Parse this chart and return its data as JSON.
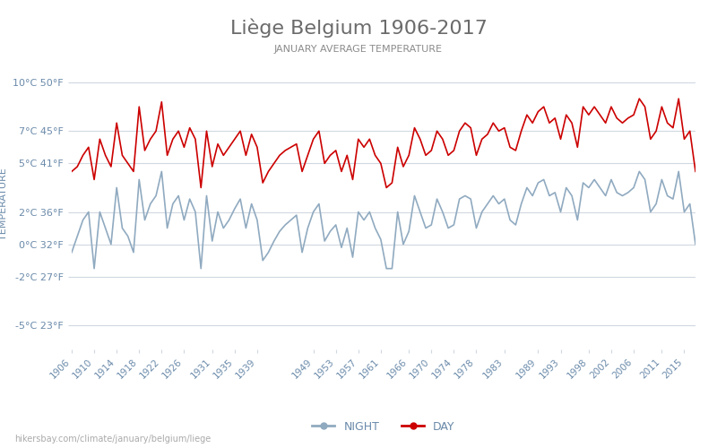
{
  "title": "Liège Belgium 1906-2017",
  "subtitle": "JANUARY AVERAGE TEMPERATURE",
  "ylabel": "TEMPERATURE",
  "xlabel": "",
  "bg_color": "#ffffff",
  "grid_color": "#d0d8e0",
  "title_color": "#6b6b6b",
  "subtitle_color": "#8b8b8b",
  "ylabel_color": "#6a8aaa",
  "tick_color": "#6a8aaa",
  "day_color": "#cc0000",
  "night_color": "#90aac0",
  "yticks_c": [
    10,
    7,
    5,
    2,
    0,
    -2,
    -5
  ],
  "ytick_labels": [
    "10°C 50°F",
    "7°C 45°F",
    "5°C 41°F",
    "2°C 36°F",
    "0°C 32°F",
    "-2°C 27°F",
    "-5°C 23°F"
  ],
  "xtick_labels": [
    "1906",
    "1910",
    "1914",
    "1918",
    "1922",
    "1926",
    "1931",
    "1935",
    "1939",
    "1949",
    "1953",
    "1957",
    "1961",
    "1966",
    "1970",
    "1974",
    "1978",
    "1983",
    "1989",
    "1993",
    "1998",
    "2002",
    "2006",
    "2011",
    "2015"
  ],
  "years": [
    1906,
    1907,
    1908,
    1909,
    1910,
    1911,
    1912,
    1913,
    1914,
    1915,
    1916,
    1917,
    1918,
    1919,
    1920,
    1921,
    1922,
    1923,
    1924,
    1925,
    1926,
    1927,
    1928,
    1929,
    1930,
    1931,
    1932,
    1933,
    1934,
    1935,
    1936,
    1937,
    1938,
    1939,
    1940,
    1941,
    1942,
    1943,
    1944,
    1945,
    1946,
    1947,
    1948,
    1949,
    1950,
    1951,
    1952,
    1953,
    1954,
    1955,
    1956,
    1957,
    1958,
    1959,
    1960,
    1961,
    1962,
    1963,
    1964,
    1965,
    1966,
    1967,
    1968,
    1969,
    1970,
    1971,
    1972,
    1973,
    1974,
    1975,
    1976,
    1977,
    1978,
    1979,
    1980,
    1981,
    1982,
    1983,
    1984,
    1985,
    1986,
    1987,
    1988,
    1989,
    1990,
    1991,
    1992,
    1993,
    1994,
    1995,
    1996,
    1997,
    1998,
    1999,
    2000,
    2001,
    2002,
    2003,
    2004,
    2005,
    2006,
    2007,
    2008,
    2009,
    2010,
    2011,
    2012,
    2013,
    2014,
    2015,
    2016,
    2017
  ],
  "day_temps": [
    4.5,
    4.8,
    5.5,
    6.0,
    4.0,
    6.5,
    5.5,
    4.8,
    7.5,
    5.5,
    5.0,
    4.5,
    8.5,
    5.8,
    6.5,
    7.0,
    8.8,
    5.5,
    6.5,
    7.0,
    6.0,
    7.2,
    6.5,
    3.5,
    7.0,
    4.8,
    6.2,
    5.5,
    6.0,
    6.5,
    7.0,
    5.5,
    6.8,
    6.0,
    3.8,
    4.5,
    5.0,
    5.5,
    5.8,
    6.0,
    6.2,
    4.5,
    5.5,
    6.5,
    7.0,
    5.0,
    5.5,
    5.8,
    4.5,
    5.5,
    4.0,
    6.5,
    6.0,
    6.5,
    5.5,
    5.0,
    3.5,
    3.8,
    6.0,
    4.8,
    5.5,
    7.2,
    6.5,
    5.5,
    5.8,
    7.0,
    6.5,
    5.5,
    5.8,
    7.0,
    7.5,
    7.2,
    5.5,
    6.5,
    6.8,
    7.5,
    7.0,
    7.2,
    6.0,
    5.8,
    7.0,
    8.0,
    7.5,
    8.2,
    8.5,
    7.5,
    7.8,
    6.5,
    8.0,
    7.5,
    6.0,
    8.5,
    8.0,
    8.5,
    8.0,
    7.5,
    8.5,
    7.8,
    7.5,
    7.8,
    8.0,
    9.0,
    8.5,
    6.5,
    7.0,
    8.5,
    7.5,
    7.2,
    9.0,
    6.5,
    7.0,
    4.5
  ],
  "night_temps": [
    -0.5,
    0.5,
    1.5,
    2.0,
    -1.5,
    2.0,
    1.0,
    0.0,
    3.5,
    1.0,
    0.5,
    -0.5,
    4.0,
    1.5,
    2.5,
    3.0,
    4.5,
    1.0,
    2.5,
    3.0,
    1.5,
    2.8,
    2.0,
    -1.5,
    3.0,
    0.2,
    2.0,
    1.0,
    1.5,
    2.2,
    2.8,
    1.0,
    2.5,
    1.5,
    -1.0,
    -0.5,
    0.2,
    0.8,
    1.2,
    1.5,
    1.8,
    -0.5,
    1.0,
    2.0,
    2.5,
    0.2,
    0.8,
    1.2,
    -0.2,
    1.0,
    -0.8,
    2.0,
    1.5,
    2.0,
    1.0,
    0.3,
    -1.5,
    -1.5,
    2.0,
    0.0,
    0.8,
    3.0,
    2.0,
    1.0,
    1.2,
    2.8,
    2.0,
    1.0,
    1.2,
    2.8,
    3.0,
    2.8,
    1.0,
    2.0,
    2.5,
    3.0,
    2.5,
    2.8,
    1.5,
    1.2,
    2.5,
    3.5,
    3.0,
    3.8,
    4.0,
    3.0,
    3.2,
    2.0,
    3.5,
    3.0,
    1.5,
    3.8,
    3.5,
    4.0,
    3.5,
    3.0,
    4.0,
    3.2,
    3.0,
    3.2,
    3.5,
    4.5,
    4.0,
    2.0,
    2.5,
    4.0,
    3.0,
    2.8,
    4.5,
    2.0,
    2.5,
    0.0
  ],
  "url_text": "hikersbay.com/climate/january/belgium/liege",
  "legend_night": "NIGHT",
  "legend_day": "DAY"
}
